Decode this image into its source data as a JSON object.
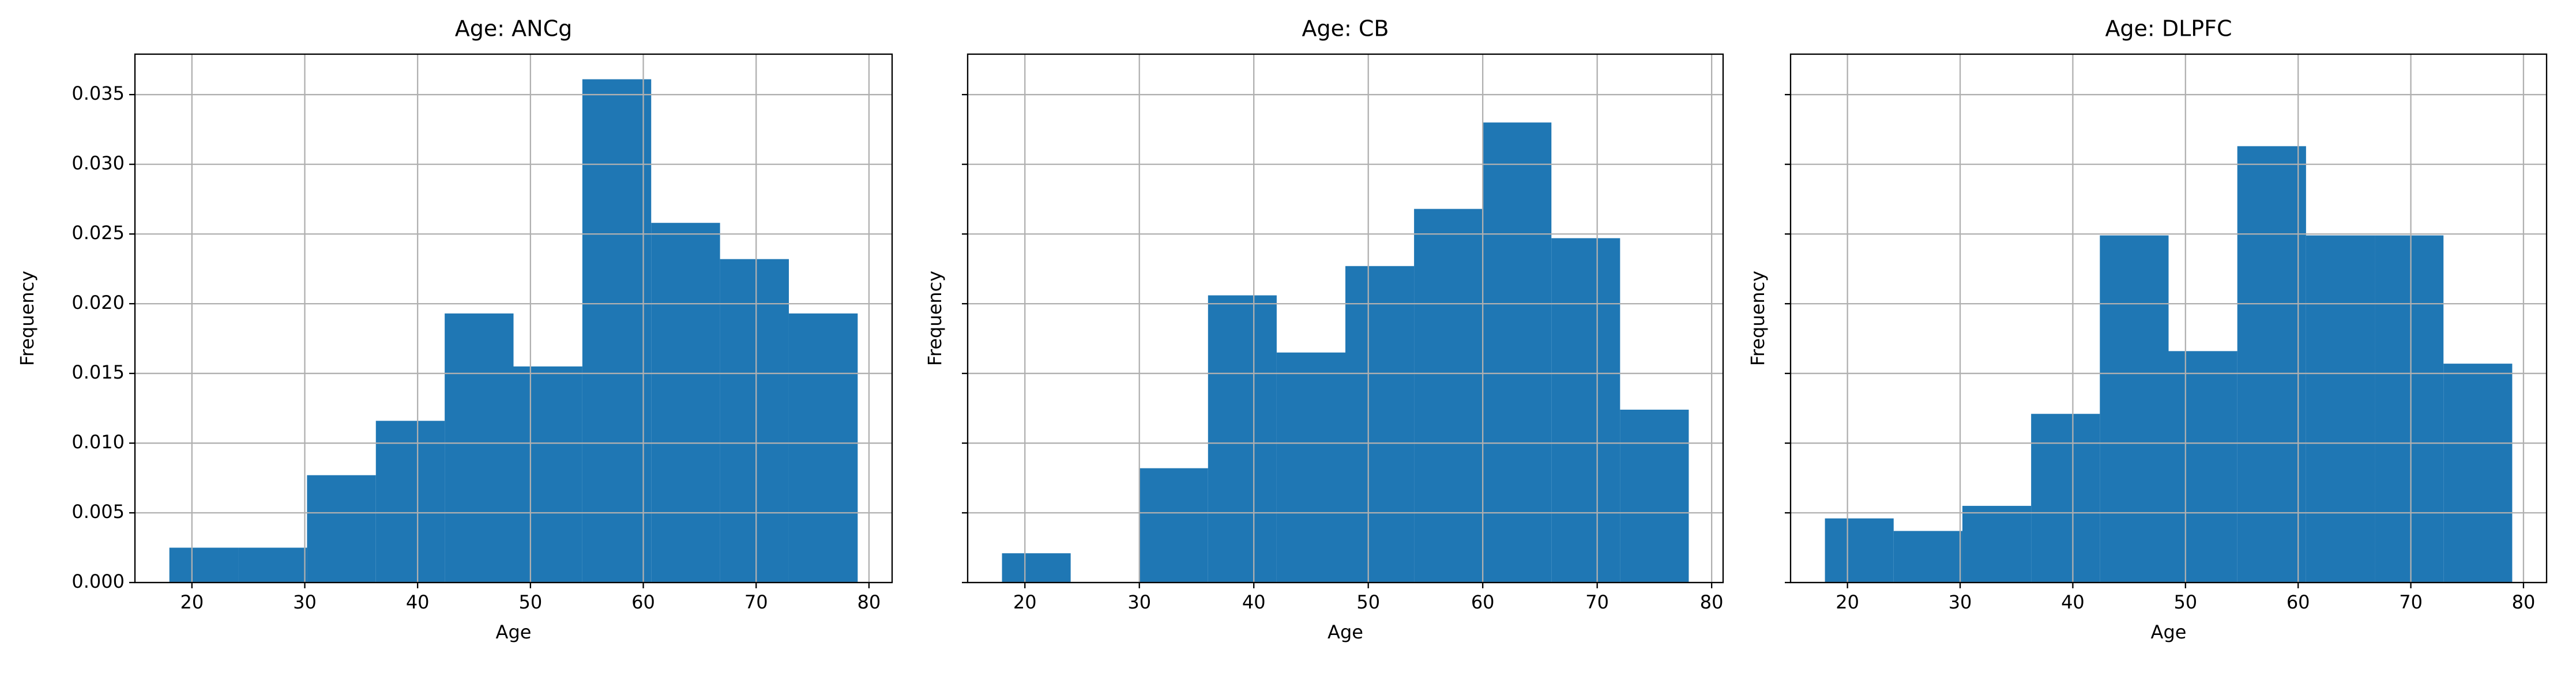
{
  "chart_data": [
    {
      "type": "histogram",
      "title": "Age: ANCg",
      "x_label": "Age",
      "y_label": "Frequency",
      "color": "#1f77b4",
      "grid": true,
      "bins": [
        18,
        24.1,
        30.2,
        36.3,
        42.4,
        48.5,
        54.6,
        60.7,
        66.8,
        72.9,
        79
      ],
      "values": [
        0.0025,
        0.0025,
        0.0077,
        0.0116,
        0.0193,
        0.0155,
        0.0361,
        0.0258,
        0.0232,
        0.0193
      ],
      "xlim": [
        14.95,
        82.05
      ],
      "xticks": [
        20,
        30,
        40,
        50,
        60,
        70,
        80
      ],
      "ylim": [
        0,
        0.0379
      ],
      "yticks": [
        {
          "value": 0,
          "label": "0.000"
        },
        {
          "value": 0.005,
          "label": "0.005"
        },
        {
          "value": 0.01,
          "label": "0.010"
        },
        {
          "value": 0.015,
          "label": "0.015"
        },
        {
          "value": 0.02,
          "label": "0.020"
        },
        {
          "value": 0.025,
          "label": "0.025"
        },
        {
          "value": 0.03,
          "label": "0.030"
        },
        {
          "value": 0.035,
          "label": "0.035"
        }
      ]
    },
    {
      "type": "histogram",
      "title": "Age: CB",
      "x_label": "Age",
      "y_label": "Frequency",
      "color": "#1f77b4",
      "grid": true,
      "bins": [
        18,
        24,
        30,
        36,
        42,
        48,
        54,
        60,
        66,
        72,
        78
      ],
      "values": [
        0.0021,
        0,
        0.0082,
        0.0206,
        0.0165,
        0.0227,
        0.0268,
        0.033,
        0.0247,
        0.0124
      ],
      "xlim": [
        15,
        81
      ],
      "xticks": [
        20,
        30,
        40,
        50,
        60,
        70,
        80
      ],
      "ylim": [
        0,
        0.0379
      ],
      "yticks": [
        0,
        0.005,
        0.01,
        0.015,
        0.02,
        0.025,
        0.03,
        0.035
      ]
    },
    {
      "type": "histogram",
      "title": "Age: DLPFC",
      "x_label": "Age",
      "y_label": "Frequency",
      "color": "#1f77b4",
      "grid": true,
      "bins": [
        18,
        24.1,
        30.2,
        36.3,
        42.4,
        48.5,
        54.6,
        60.7,
        66.8,
        72.9,
        79
      ],
      "values": [
        0.0046,
        0.0037,
        0.0055,
        0.0121,
        0.0249,
        0.0166,
        0.0313,
        0.0249,
        0.0249,
        0.0157
      ],
      "xlim": [
        14.95,
        82.05
      ],
      "xticks": [
        20,
        30,
        40,
        50,
        60,
        70,
        80
      ],
      "ylim": [
        0,
        0.0379
      ],
      "yticks": [
        0,
        0.005,
        0.01,
        0.015,
        0.02,
        0.025,
        0.03,
        0.035
      ]
    }
  ]
}
